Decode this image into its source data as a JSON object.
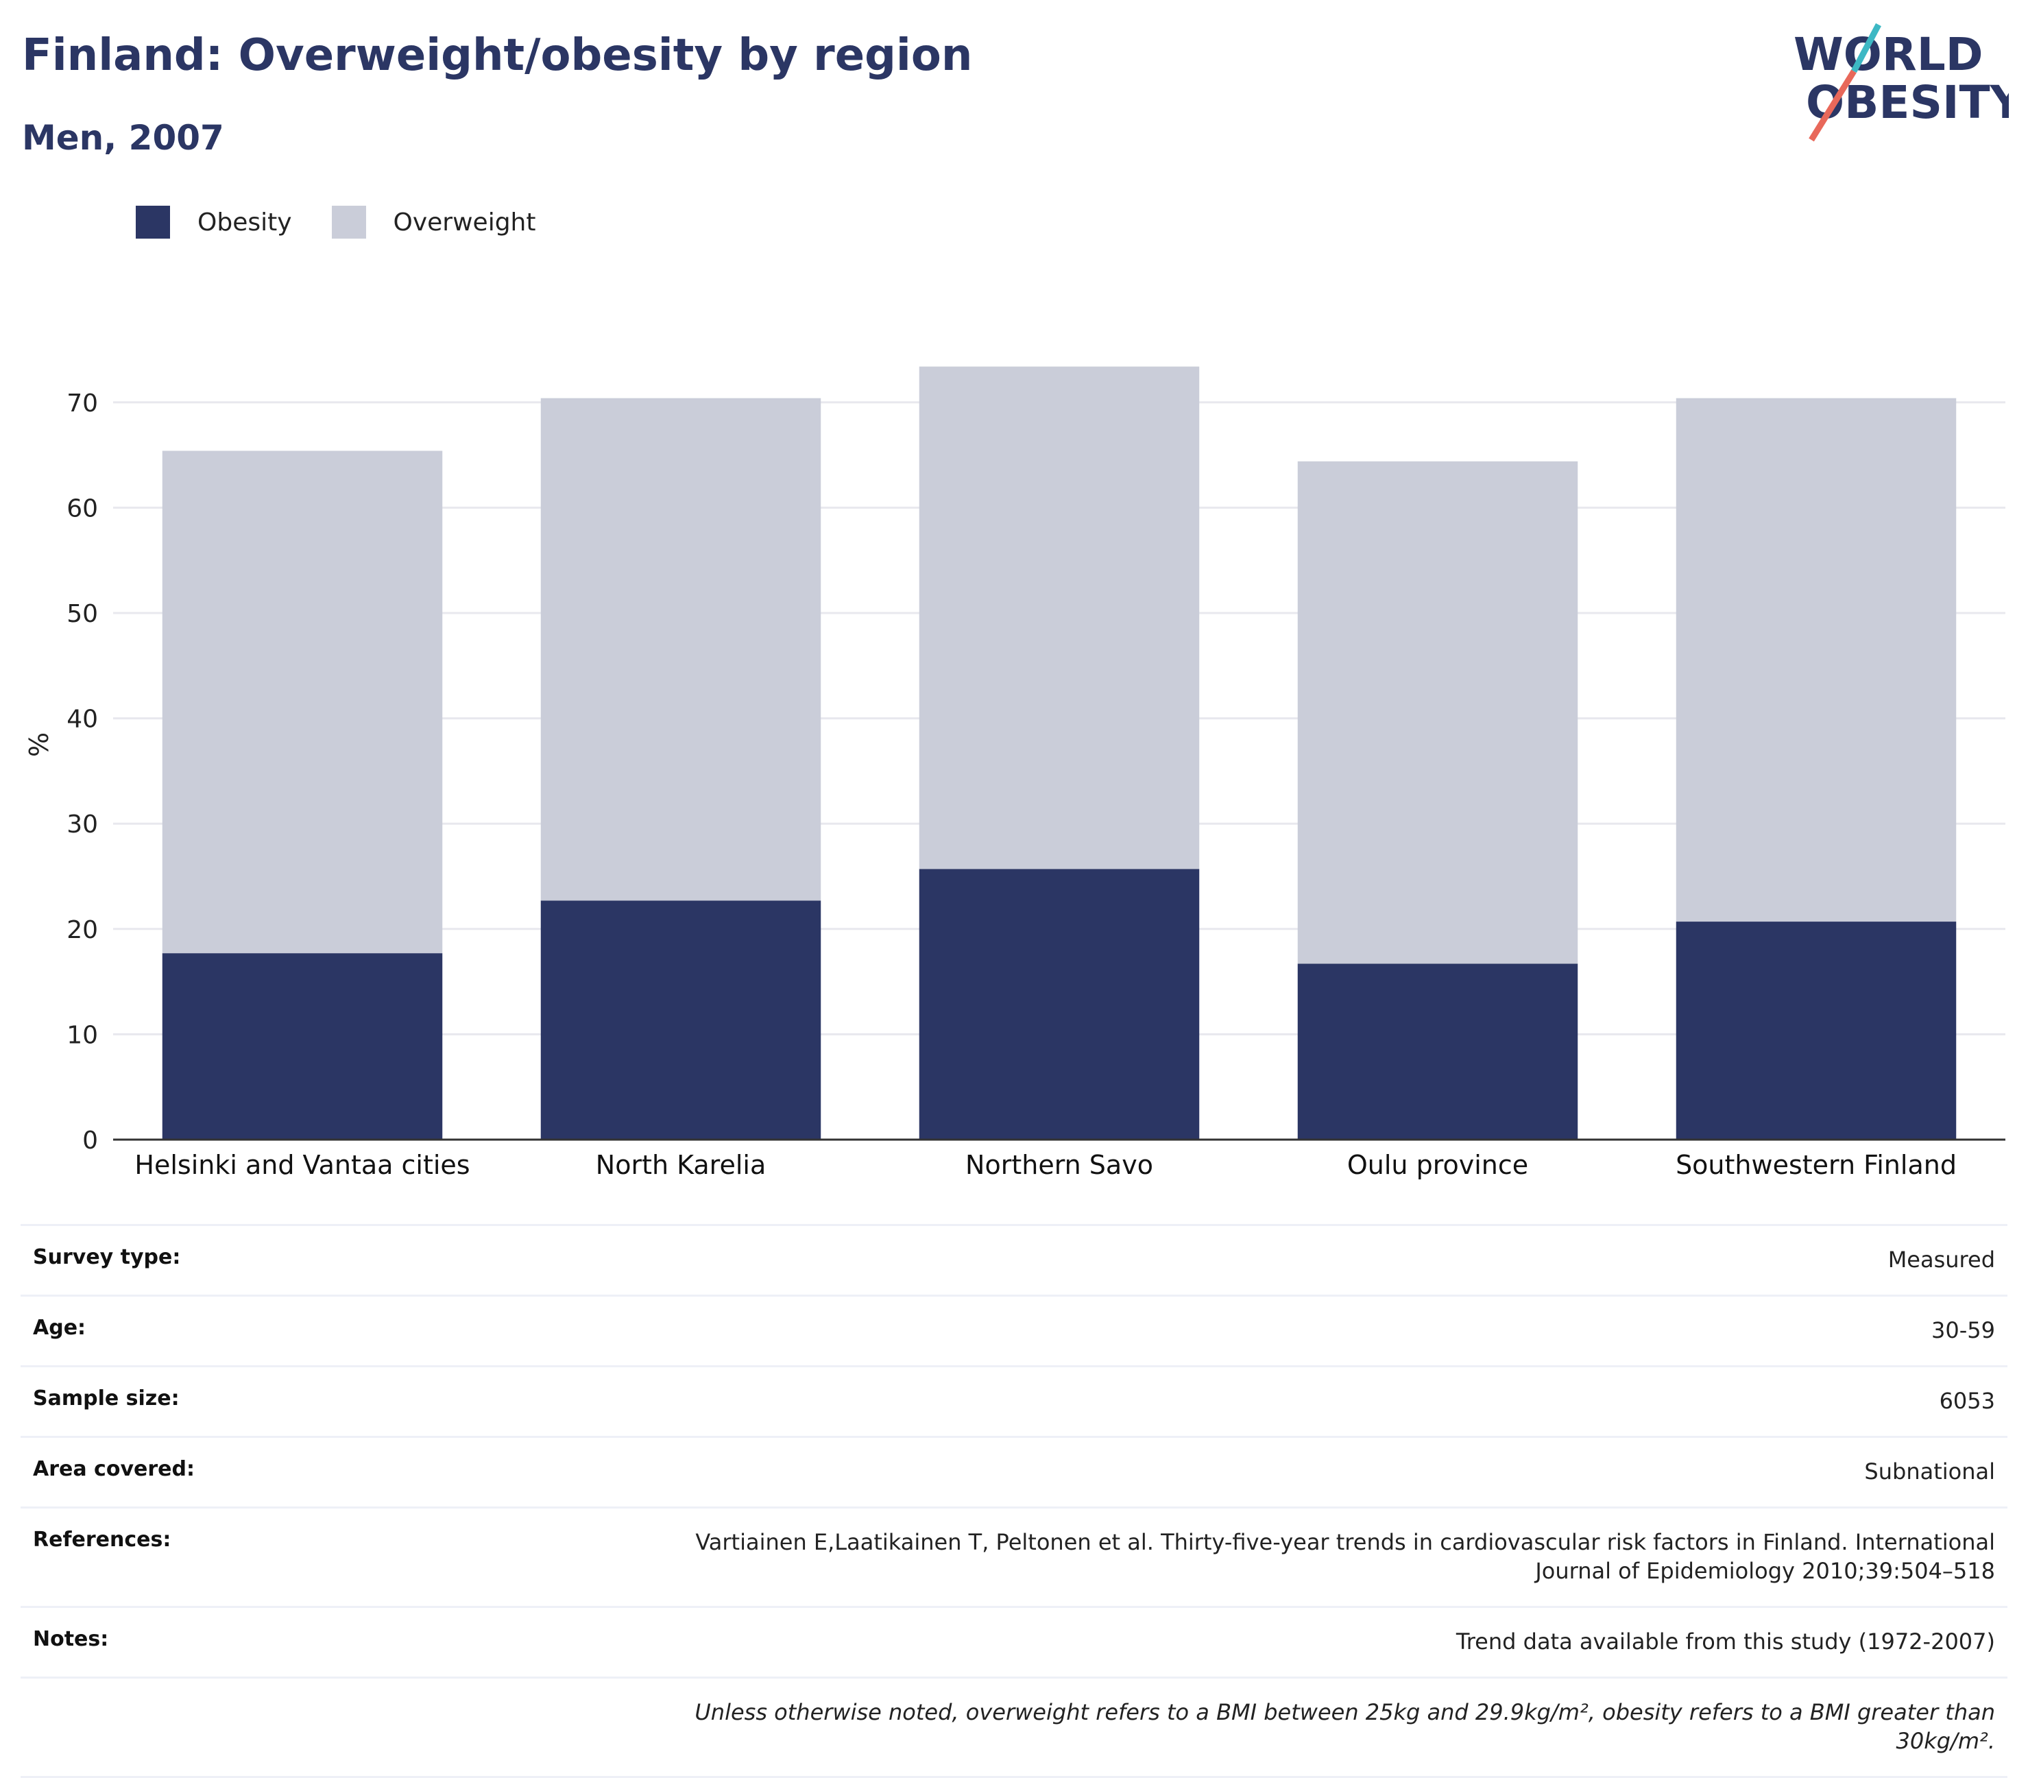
{
  "header": {
    "title": "Finland: Overweight/obesity by region",
    "subtitle": "Men, 2007"
  },
  "logo": {
    "line1": "WORLD",
    "line2": "OBESITY",
    "colors": {
      "text": "#2b3664",
      "slash_top": "#3db8c4",
      "slash_bottom": "#e8685a"
    }
  },
  "legend": {
    "items": [
      {
        "label": "Obesity",
        "color": "#2b3664"
      },
      {
        "label": "Overweight",
        "color": "#cacdd9"
      }
    ]
  },
  "chart_data": {
    "type": "bar",
    "stacked": true,
    "categories": [
      "Helsinki and Vantaa cities",
      "North Karelia",
      "Northern Savo",
      "Oulu province",
      "Southwestern Finland"
    ],
    "series": [
      {
        "name": "Obesity",
        "color": "#2b3664",
        "values": [
          17.7,
          22.7,
          25.7,
          16.7,
          20.7
        ]
      },
      {
        "name": "Overweight",
        "color": "#cacdd9",
        "values": [
          47.7,
          47.7,
          47.7,
          47.7,
          49.7
        ]
      }
    ],
    "ylabel": "%",
    "xlabel": "",
    "ylim": [
      0,
      75
    ],
    "yticks": [
      0,
      10,
      20,
      30,
      40,
      50,
      60,
      70
    ],
    "grid": true,
    "legend_position": "top-left"
  },
  "details": {
    "rows": [
      {
        "label": "Survey type:",
        "value": "Measured"
      },
      {
        "label": "Age:",
        "value": "30-59"
      },
      {
        "label": "Sample size:",
        "value": "6053"
      },
      {
        "label": "Area covered:",
        "value": "Subnational"
      },
      {
        "label": "References:",
        "value": "Vartiainen E,Laatikainen T, Peltonen et al. Thirty-five-year trends in cardiovascular risk factors in Finland. International Journal of Epidemiology 2010;39:504–518"
      },
      {
        "label": "Notes:",
        "value": "Trend data available from this study (1972-2007)"
      }
    ],
    "footnote": "Unless otherwise noted, overweight refers to a BMI between 25kg and 29.9kg/m², obesity refers to a BMI greater than 30kg/m²."
  }
}
